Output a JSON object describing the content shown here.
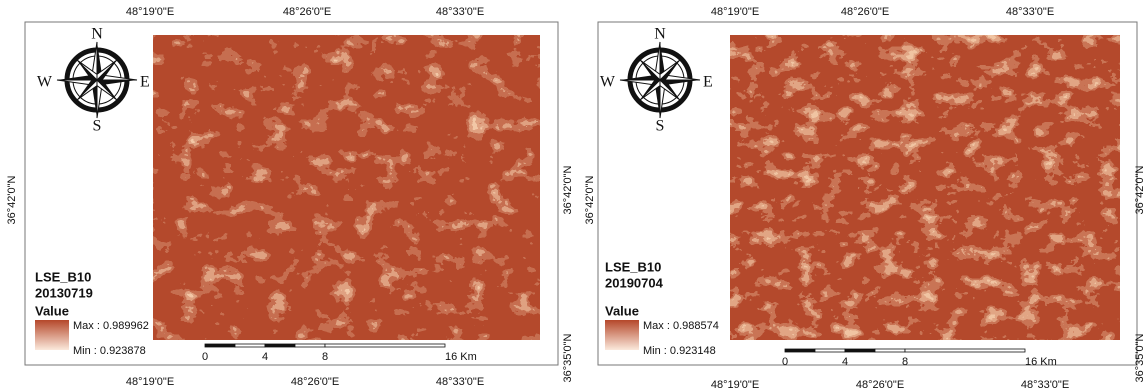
{
  "panels": [
    {
      "top_labels": [
        "48°19'0\"E",
        "48°26'0\"E",
        "48°33'0\"E"
      ],
      "bottom_labels": [
        "48°19'0\"E",
        "48°26'0\"E",
        "48°33'0\"E"
      ],
      "left_label": "36°42'0\"N",
      "right_labels": [
        "36°42'0\"N",
        "36°35'0\"N"
      ],
      "compass": {
        "north": "N",
        "south": "S",
        "west": "W",
        "east": "E"
      },
      "legend": {
        "title": "LSE_B10",
        "date": "20130719",
        "value": "Value",
        "max": "Max : 0.989962",
        "min": "Min : 0.923878"
      },
      "scale": [
        "0",
        "4",
        "8",
        "16 Km"
      ]
    },
    {
      "top_labels": [
        "48°19'0\"E",
        "48°26'0\"E",
        "48°33'0\"E"
      ],
      "bottom_labels": [
        "48°19'0\"E",
        "48°26'0\"E",
        "48°33'0\"E"
      ],
      "left_label": "36°42'0\"N",
      "right_labels": [
        "36°42'0\"N",
        "36°35'0\"N"
      ],
      "compass": {
        "north": "N",
        "south": "S",
        "west": "W",
        "east": "E"
      },
      "legend": {
        "title": "LSE_B10",
        "date": "20190704",
        "value": "Value",
        "max": "Max : 0.988574",
        "min": "Min : 0.923148"
      },
      "scale": [
        "0",
        "4",
        "8",
        "16 Km"
      ]
    }
  ]
}
